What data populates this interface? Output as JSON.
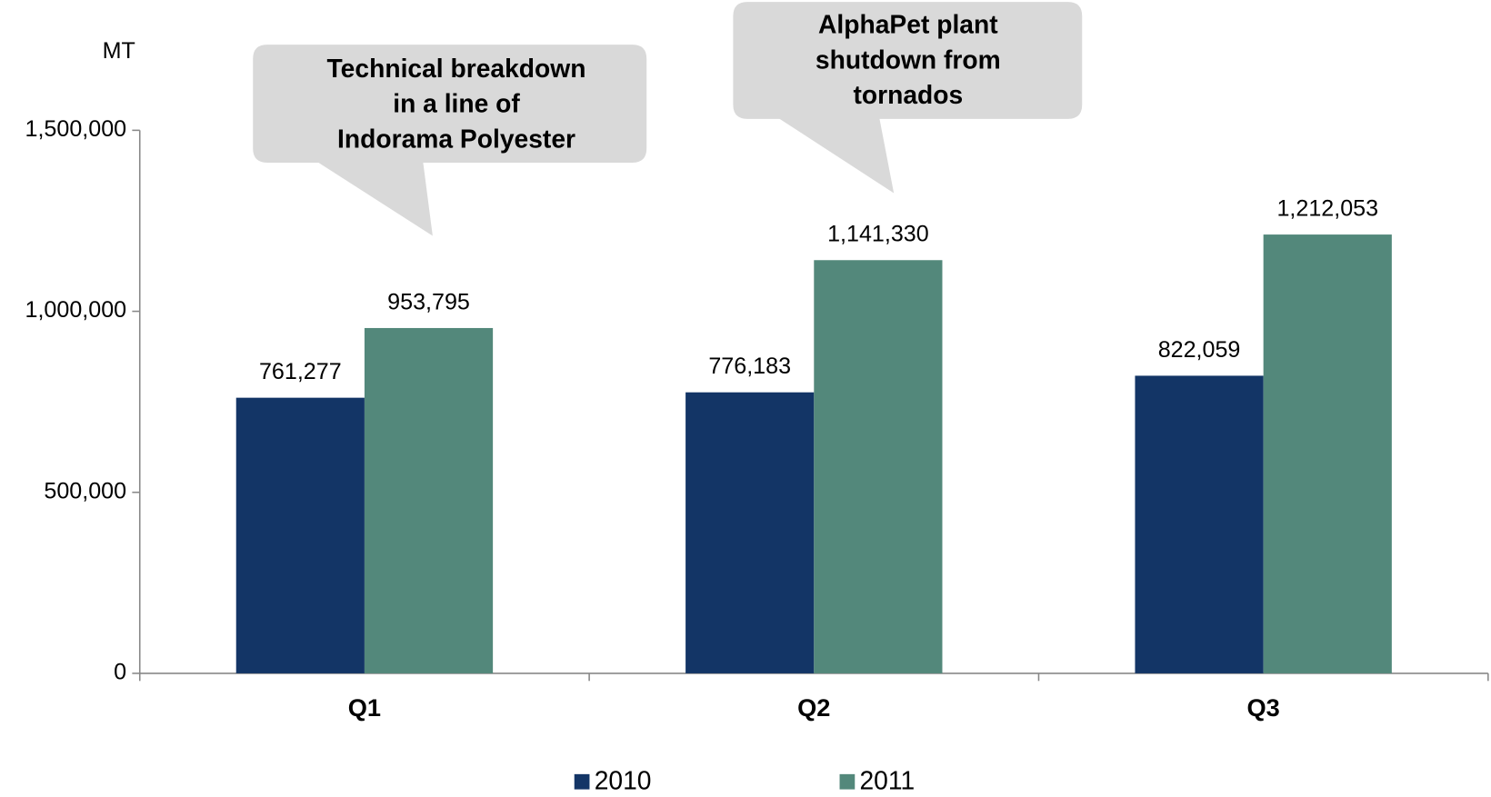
{
  "chart_data": {
    "type": "bar",
    "y_axis_label": "MT",
    "categories": [
      "Q1",
      "Q2",
      "Q3"
    ],
    "series": [
      {
        "name": "2010",
        "color": "#133566",
        "values": [
          761277,
          776183,
          822059
        ],
        "value_labels": [
          "761,277",
          "776,183",
          "822,059"
        ]
      },
      {
        "name": "2011",
        "color": "#53887b",
        "values": [
          953795,
          1141330,
          1212053
        ],
        "value_labels": [
          "953,795",
          "1,141,330",
          "1,212,053"
        ]
      }
    ],
    "ylim": [
      0,
      1500000
    ],
    "yticks": [
      0,
      {
        "value": 500000,
        "label": "500,000"
      },
      {
        "value": 1000000,
        "label": "1,000,000"
      },
      {
        "value": 1500000,
        "label": "1,500,000"
      }
    ],
    "legend": "bottom",
    "annotations": [
      {
        "lines": [
          "Technical breakdown",
          "in a line of",
          "Indorama Polyester"
        ]
      },
      {
        "lines": [
          "AlphaPet plant",
          "shutdown from",
          "tornados"
        ]
      }
    ]
  }
}
